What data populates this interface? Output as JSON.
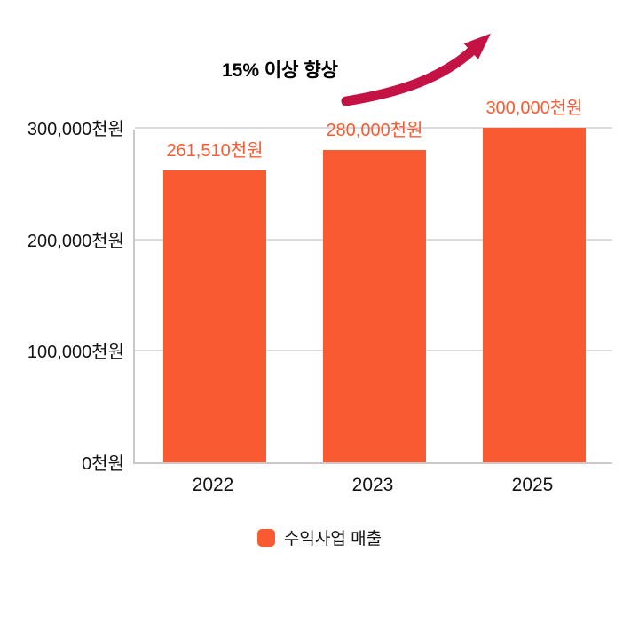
{
  "chart_data": {
    "type": "bar",
    "title": "",
    "annotation": "15% 이상 향상",
    "categories": [
      "2022",
      "2023",
      "2025"
    ],
    "series": [
      {
        "name": "수익사업 매출",
        "values": [
          261510,
          280000,
          300000
        ]
      }
    ],
    "value_labels": [
      "261,510천원",
      "280,000천원",
      "300,000천원"
    ],
    "xlabel": "",
    "ylabel": "",
    "ylim": [
      0,
      300000
    ],
    "y_ticks": [
      {
        "value": 0,
        "label": "0천원"
      },
      {
        "value": 100000,
        "label": "100,000천원"
      },
      {
        "value": 200000,
        "label": "200,000천원"
      },
      {
        "value": 300000,
        "label": "300,000천원"
      }
    ],
    "grid": true,
    "legend_position": "bottom",
    "colors": {
      "bar": "#fa5a32",
      "value_label": "#fa5a32",
      "arrow": "#c51244",
      "grid": "#dcdcdc",
      "axis": "#c9c9c9",
      "text": "#141414"
    }
  },
  "legend": {
    "items": [
      {
        "label": "수익사업 매출",
        "color": "#fa5a32"
      }
    ]
  }
}
